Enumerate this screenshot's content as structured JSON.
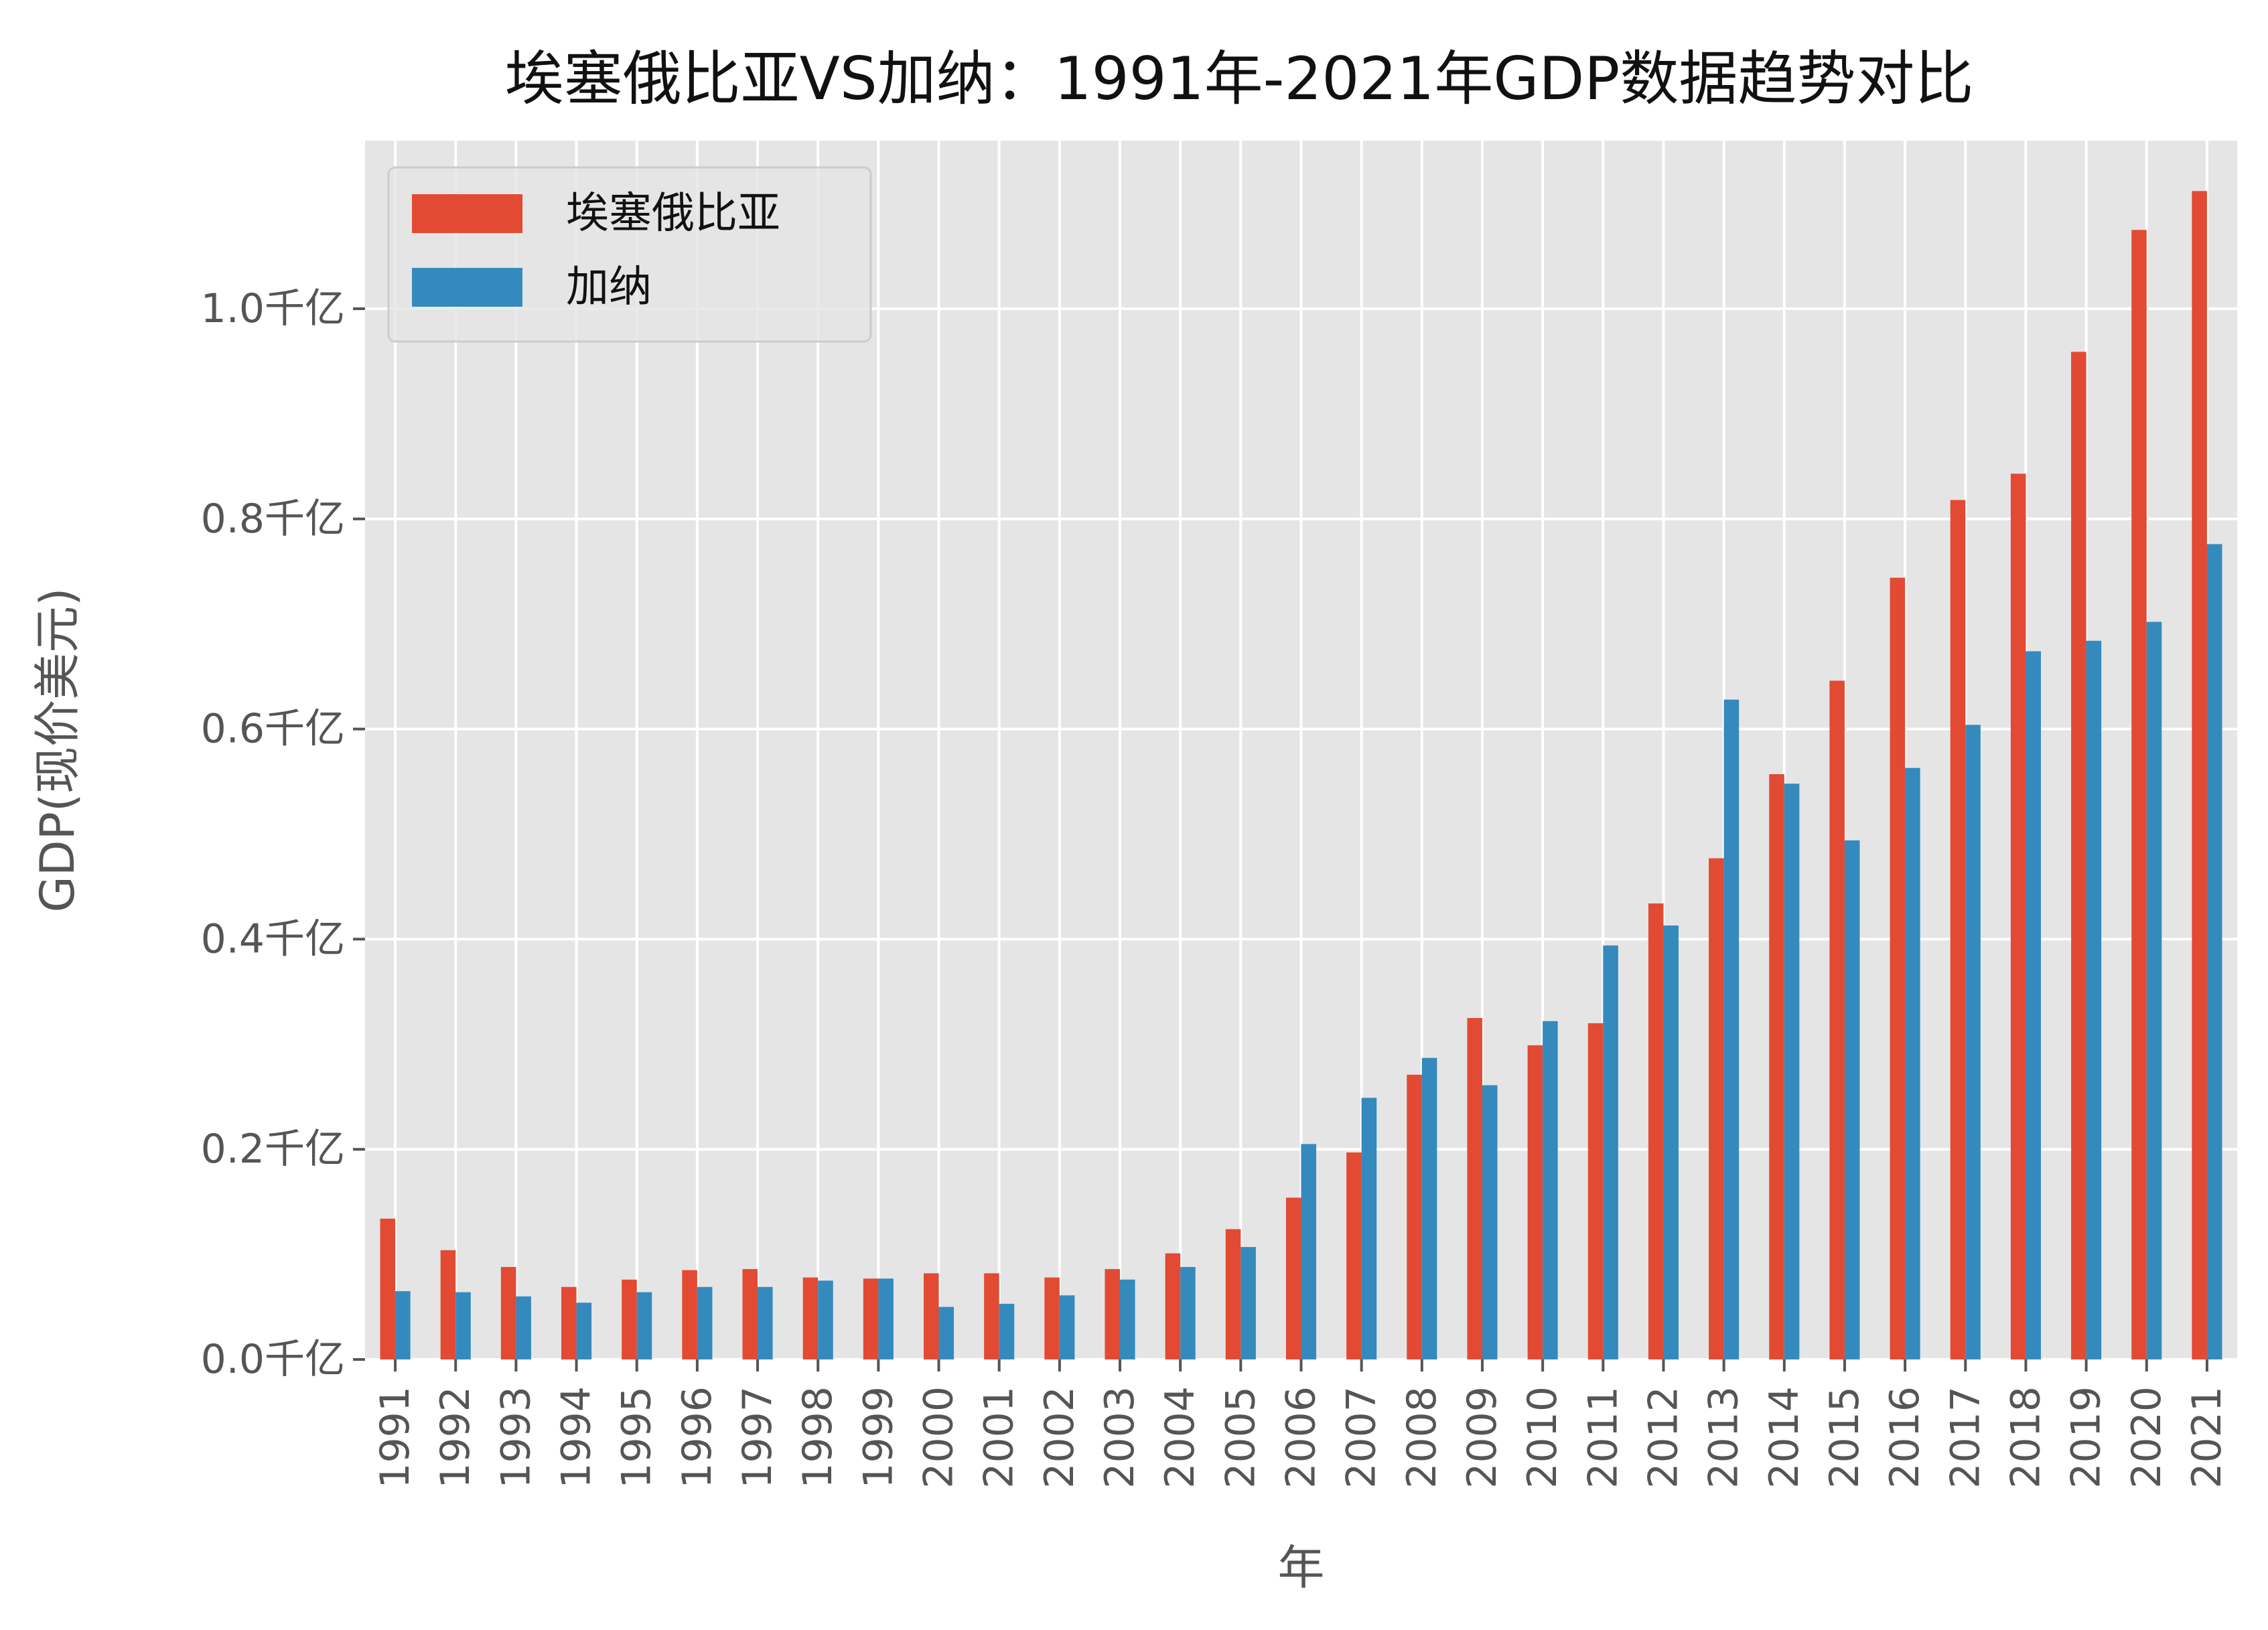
{
  "chart_data": {
    "type": "bar",
    "title": "埃塞俄比亚VS加纳：1991年-2021年GDP数据趋势对比",
    "xlabel": "年",
    "ylabel": "GDP(现价美元)",
    "ylim": [
      0,
      1.16
    ],
    "y_ticks": [
      0.0,
      0.2,
      0.4,
      0.6,
      0.8,
      1.0
    ],
    "y_tick_labels": [
      "0.0千亿",
      "0.2千亿",
      "0.4千亿",
      "0.6千亿",
      "0.8千亿",
      "1.0千亿"
    ],
    "grid": true,
    "legend_position": "top-left",
    "categories": [
      "1991",
      "1992",
      "1993",
      "1994",
      "1995",
      "1996",
      "1997",
      "1998",
      "1999",
      "2000",
      "2001",
      "2002",
      "2003",
      "2004",
      "2005",
      "2006",
      "2007",
      "2008",
      "2009",
      "2010",
      "2011",
      "2012",
      "2013",
      "2014",
      "2015",
      "2016",
      "2017",
      "2018",
      "2019",
      "2020",
      "2021"
    ],
    "series": [
      {
        "name": "埃塞俄比亚",
        "color": "#E24A33",
        "values": [
          0.134,
          0.104,
          0.088,
          0.069,
          0.076,
          0.085,
          0.086,
          0.078,
          0.077,
          0.082,
          0.082,
          0.078,
          0.086,
          0.101,
          0.124,
          0.154,
          0.197,
          0.271,
          0.325,
          0.299,
          0.32,
          0.434,
          0.477,
          0.557,
          0.646,
          0.744,
          0.818,
          0.843,
          0.959,
          1.075,
          1.112
        ]
      },
      {
        "name": "加纳",
        "color": "#348ABD",
        "values": [
          0.065,
          0.064,
          0.06,
          0.054,
          0.064,
          0.069,
          0.069,
          0.075,
          0.077,
          0.05,
          0.053,
          0.061,
          0.076,
          0.088,
          0.107,
          0.205,
          0.249,
          0.287,
          0.261,
          0.322,
          0.394,
          0.413,
          0.628,
          0.548,
          0.494,
          0.563,
          0.604,
          0.674,
          0.684,
          0.702,
          0.776
        ]
      }
    ]
  }
}
